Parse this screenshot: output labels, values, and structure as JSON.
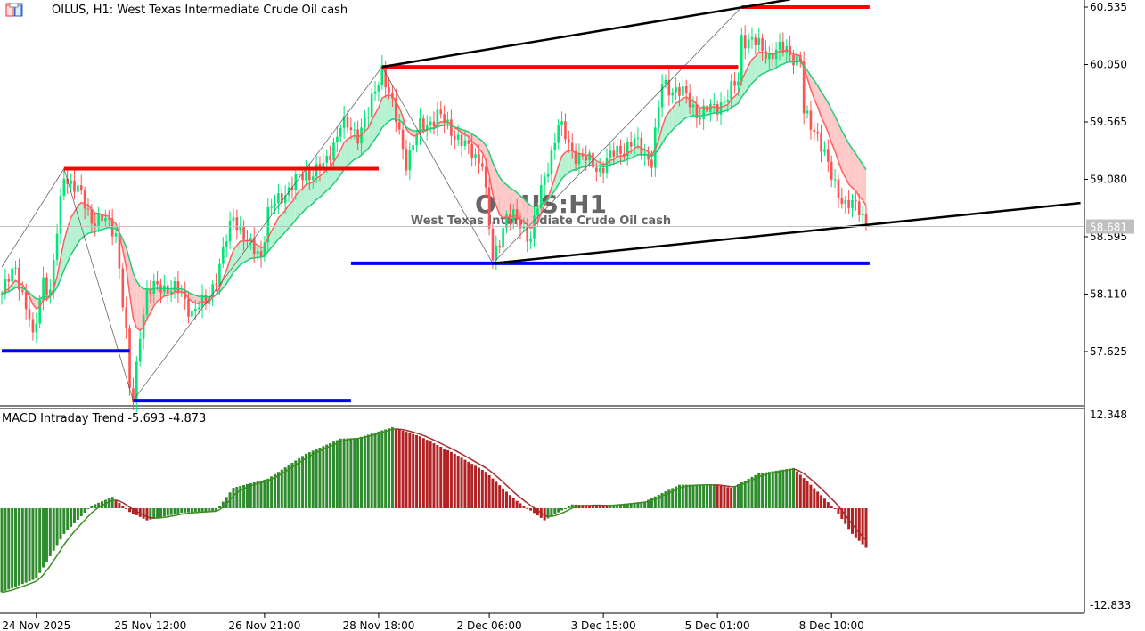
{
  "header": {
    "symbol_title": "OILUS, H1:  West Texas Intermediate Crude Oil cash",
    "icons": [
      "chart-list-icon",
      "templates-icon"
    ]
  },
  "watermark": {
    "title": "OILUS:H1",
    "subtitle": "West Texas Intermediate Crude Oil cash"
  },
  "macd": {
    "label": "MACD Intraday Trend",
    "value1": "-5.693",
    "value2": "-4.873"
  },
  "colors": {
    "bull": "#00e676",
    "bear": "#ff5252",
    "fast_ma": "#ff5f5f",
    "slow_ma": "#22cc77",
    "resistance": "#ff0000",
    "support": "#0000ff",
    "trend": "#000000",
    "macd_up": "#2e8b2e",
    "macd_down": "#b22222",
    "macd_signal_up": "#3c8c1e",
    "macd_signal_down": "#a52a2a"
  },
  "chart_data": {
    "type": "candlestick",
    "bar_count": 251,
    "price_axis": {
      "ticks": [
        "60.535",
        "60.050",
        "59.565",
        "59.080",
        "58.595",
        "58.110",
        "57.625"
      ],
      "range": [
        57.21,
        60.57
      ]
    },
    "current_price": "58.681",
    "time_axis": {
      "ticks": [
        {
          "label": "24 Nov 2025",
          "bar": 10
        },
        {
          "label": "25 Nov 12:00",
          "bar": 43
        },
        {
          "label": "26 Nov 21:00",
          "bar": 76
        },
        {
          "label": "28 Nov 18:00",
          "bar": 109
        },
        {
          "label": "2 Dec 06:00",
          "bar": 141
        },
        {
          "label": "3 Dec 15:00",
          "bar": 174
        },
        {
          "label": "5 Dec 01:00",
          "bar": 207
        },
        {
          "label": "8 Dec 10:00",
          "bar": 240
        }
      ]
    },
    "price_path": [
      [
        0,
        58.11
      ],
      [
        4,
        58.34
      ],
      [
        8,
        57.89
      ],
      [
        9,
        57.7
      ],
      [
        12,
        58.26
      ],
      [
        14,
        58.11
      ],
      [
        18,
        59.13
      ],
      [
        22,
        58.98
      ],
      [
        26,
        58.75
      ],
      [
        30,
        58.72
      ],
      [
        33,
        58.64
      ],
      [
        36,
        57.74
      ],
      [
        37,
        57.29
      ],
      [
        38,
        57.21
      ],
      [
        40,
        57.81
      ],
      [
        42,
        58.11
      ],
      [
        46,
        58.19
      ],
      [
        52,
        58.11
      ],
      [
        55,
        57.96
      ],
      [
        59,
        58.04
      ],
      [
        63,
        58.34
      ],
      [
        67,
        58.79
      ],
      [
        71,
        58.53
      ],
      [
        75,
        58.45
      ],
      [
        77,
        58.79
      ],
      [
        82,
        58.98
      ],
      [
        88,
        59.13
      ],
      [
        93,
        59.17
      ],
      [
        98,
        59.54
      ],
      [
        103,
        59.47
      ],
      [
        106,
        59.62
      ],
      [
        110,
        60.03
      ],
      [
        113,
        59.69
      ],
      [
        117,
        59.24
      ],
      [
        121,
        59.51
      ],
      [
        126,
        59.62
      ],
      [
        131,
        59.47
      ],
      [
        135,
        59.32
      ],
      [
        139,
        59.24
      ],
      [
        142,
        58.37
      ],
      [
        146,
        58.79
      ],
      [
        149,
        58.72
      ],
      [
        153,
        58.6
      ],
      [
        157,
        59.09
      ],
      [
        161,
        59.54
      ],
      [
        165,
        59.32
      ],
      [
        169,
        59.24
      ],
      [
        173,
        59.17
      ],
      [
        178,
        59.32
      ],
      [
        183,
        59.39
      ],
      [
        188,
        59.24
      ],
      [
        191,
        59.88
      ],
      [
        195,
        59.84
      ],
      [
        198,
        59.77
      ],
      [
        202,
        59.62
      ],
      [
        206,
        59.69
      ],
      [
        210,
        59.77
      ],
      [
        213,
        59.92
      ],
      [
        214,
        60.29
      ],
      [
        218,
        60.22
      ],
      [
        222,
        60.14
      ],
      [
        227,
        60.18
      ],
      [
        231,
        60.07
      ],
      [
        232,
        59.62
      ],
      [
        236,
        59.47
      ],
      [
        240,
        59.09
      ],
      [
        244,
        58.87
      ],
      [
        248,
        58.83
      ],
      [
        251,
        58.68
      ]
    ],
    "moving_averages": [
      {
        "type": "fast",
        "period": 8
      },
      {
        "type": "slow",
        "period": 21
      }
    ],
    "lines": {
      "resistance": [
        {
          "price": 59.17,
          "from_bar": 18,
          "to_bar": 109
        },
        {
          "price": 60.03,
          "from_bar": 110,
          "to_bar": 213
        },
        {
          "price": 60.535,
          "from_bar": 214,
          "to_bar": 251
        }
      ],
      "support": [
        {
          "price": 57.63,
          "from_bar": 0,
          "to_bar": 37
        },
        {
          "price": 57.21,
          "from_bar": 38,
          "to_bar": 101
        },
        {
          "price": 58.37,
          "from_bar": 101,
          "to_bar": 251
        }
      ],
      "trend": [
        {
          "from": [
            110,
            60.03
          ],
          "to": [
            228,
            60.6
          ]
        },
        {
          "from": [
            142,
            58.37
          ],
          "to": [
            312,
            58.88
          ]
        }
      ],
      "zigzag": [
        [
          0,
          58.34
        ],
        [
          18,
          59.17
        ],
        [
          38,
          57.21
        ],
        [
          110,
          60.03
        ],
        [
          142,
          58.37
        ],
        [
          214,
          60.535
        ]
      ]
    },
    "macd_axis": {
      "ticks": [
        "12.348",
        "-12.833"
      ],
      "range": [
        -12.833,
        12.348
      ]
    },
    "macd_path": [
      [
        0,
        -11.1
      ],
      [
        10,
        -9.3
      ],
      [
        18,
        -3.4
      ],
      [
        26,
        0.35
      ],
      [
        32,
        1.5
      ],
      [
        37,
        -0.5
      ],
      [
        42,
        -1.6
      ],
      [
        52,
        -0.6
      ],
      [
        62,
        -0.35
      ],
      [
        67,
        2.7
      ],
      [
        77,
        3.9
      ],
      [
        88,
        7.2
      ],
      [
        98,
        9.2
      ],
      [
        103,
        9.3
      ],
      [
        113,
        10.7
      ],
      [
        121,
        9.5
      ],
      [
        131,
        7.2
      ],
      [
        140,
        4.8
      ],
      [
        148,
        1.3
      ],
      [
        157,
        -1.6
      ],
      [
        165,
        0.5
      ],
      [
        175,
        0.35
      ],
      [
        186,
        0.9
      ],
      [
        196,
        3.1
      ],
      [
        206,
        3.1
      ],
      [
        211,
        2.7
      ],
      [
        219,
        4.6
      ],
      [
        229,
        5.3
      ],
      [
        234,
        3.1
      ],
      [
        241,
        -0.1
      ],
      [
        246,
        -3.4
      ],
      [
        251,
        -5.69
      ]
    ]
  }
}
